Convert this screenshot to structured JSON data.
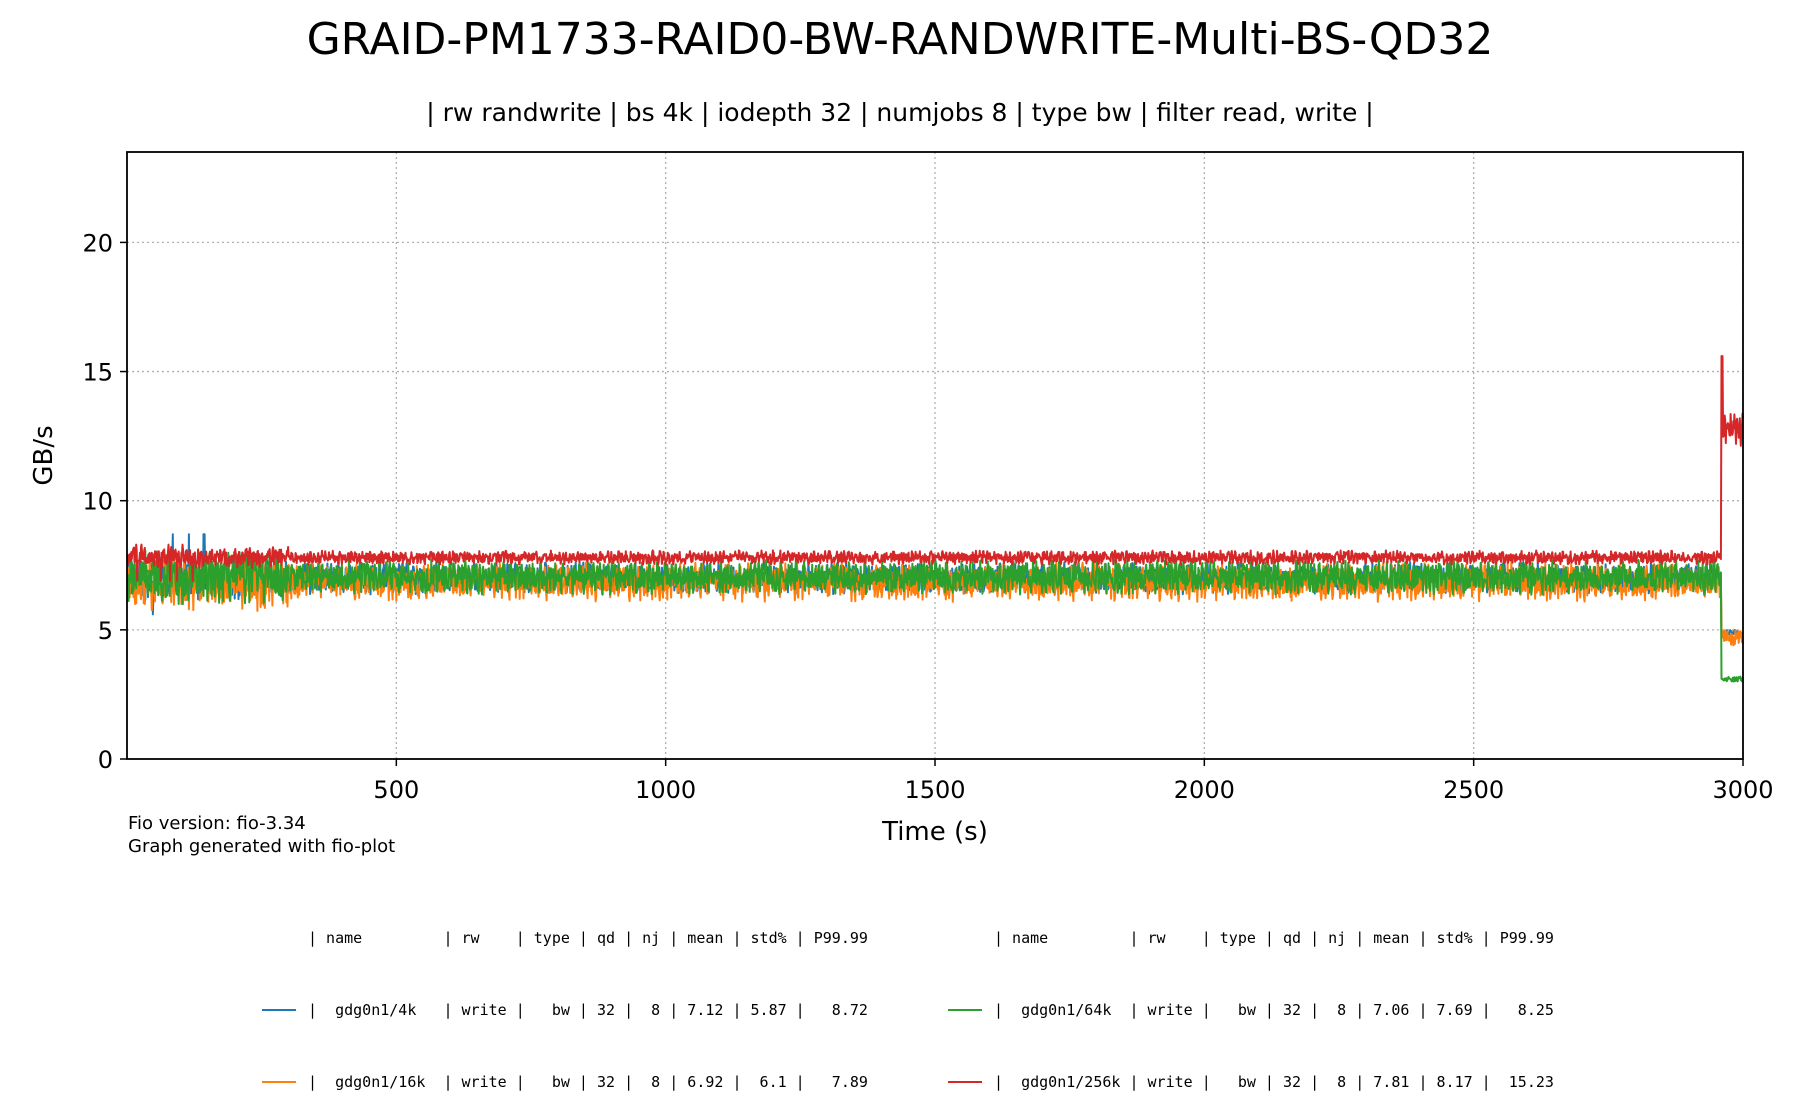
{
  "chart_data": {
    "type": "line",
    "title": "GRAID-PM1733-RAID0-BW-RANDWRITE-Multi-BS-QD32",
    "subtitle": "| rw randwrite | bs 4k | iodepth 32 | numjobs 8 | type bw | filter read, write |",
    "xlabel": "Time (s)",
    "ylabel": "GB/s",
    "xlim": [
      0,
      3000
    ],
    "ylim": [
      0,
      23.5
    ],
    "x_ticks": [
      500,
      1000,
      1500,
      2000,
      2500,
      3000
    ],
    "y_ticks": [
      0,
      5,
      10,
      15,
      20
    ],
    "grid": true,
    "series": [
      {
        "name": "gdg0n1/4k",
        "color": "#1f77b4",
        "steady_mean": 7.0,
        "steady_amp": 0.45,
        "early_spike": 8.7,
        "early_dip": 5.6,
        "tail_level": 4.9,
        "tail_amp": 0.1,
        "end_time": 2993
      },
      {
        "name": "gdg0n1/16k",
        "color": "#ff7f0e",
        "steady_mean": 6.85,
        "steady_amp": 0.55,
        "early_spike": 7.9,
        "early_dip": 6.0,
        "tail_level": 4.7,
        "tail_amp": 0.3,
        "end_time": 3000
      },
      {
        "name": "gdg0n1/64k",
        "color": "#2ca02c",
        "steady_mean": 7.05,
        "steady_amp": 0.5,
        "early_spike": 7.6,
        "early_dip": 6.0,
        "tail_level": 3.1,
        "tail_amp": 0.1,
        "end_time": 3000
      },
      {
        "name": "gdg0n1/256k",
        "color": "#d62728",
        "steady_mean": 7.8,
        "steady_amp": 0.2,
        "early_spike": 8.3,
        "early_dip": 6.9,
        "tail_level": 12.8,
        "tail_amp": 0.6,
        "tail_peak": 15.6,
        "end_time": 3000
      }
    ],
    "transition_time": 2960
  },
  "footer": {
    "line1": "Fio version: fio-3.34",
    "line2": "Graph generated with fio-plot"
  },
  "legend": {
    "left": {
      "header": "| name         | rw    | type | qd | nj | mean | std% | P99.99",
      "rows": [
        {
          "text": "|  gdg0n1/4k   | write |   bw | 32 |  8 | 7.12 | 5.87 |   8.72",
          "color": "#1f77b4"
        },
        {
          "text": "|  gdg0n1/16k  | write |   bw | 32 |  8 | 6.92 |  6.1 |   7.89",
          "color": "#ff7f0e"
        }
      ]
    },
    "right": {
      "header": "| name         | rw    | type | qd | nj | mean | std% | P99.99",
      "rows": [
        {
          "text": "|  gdg0n1/64k  | write |   bw | 32 |  8 | 7.06 | 7.69 |   8.25",
          "color": "#2ca02c"
        },
        {
          "text": "|  gdg0n1/256k | write |   bw | 32 |  8 | 7.81 | 8.17 |  15.23",
          "color": "#d62728"
        }
      ]
    }
  }
}
